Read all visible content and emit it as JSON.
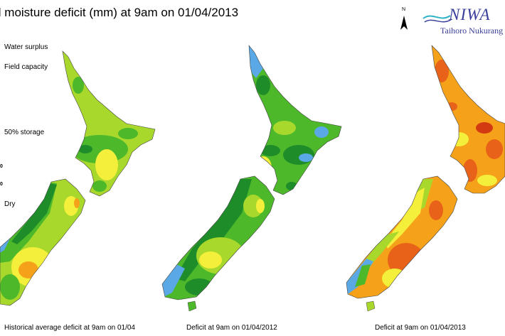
{
  "title": "il moisture deficit (mm) at  9am on 01/04/2013",
  "north_label": "N",
  "logo": {
    "wordmark": "NIWA",
    "subtitle": "Taihoro Nukurang"
  },
  "legend": {
    "labels": [
      "Water surplus",
      "Field capacity",
      "50% storage",
      "Dry"
    ],
    "partial_ticks": [
      "0",
      "0"
    ]
  },
  "maps": [
    {
      "caption": "Historical average deficit at 9am on 01/04",
      "scheme": "average"
    },
    {
      "caption": "Deficit at  9am on 01/04/2012",
      "scheme": "wet"
    },
    {
      "caption": "Deficit at  9am on 01/04/2013",
      "scheme": "dry"
    }
  ],
  "colors": {
    "surplus": "#5aa9e6",
    "field_capacity": "#1f8c2a",
    "moist": "#4cb82a",
    "light_green": "#a8d82c",
    "yellow": "#f3ef3a",
    "orange": "#f5a21a",
    "dry": "#e8621a",
    "very_dry": "#d43a12"
  }
}
